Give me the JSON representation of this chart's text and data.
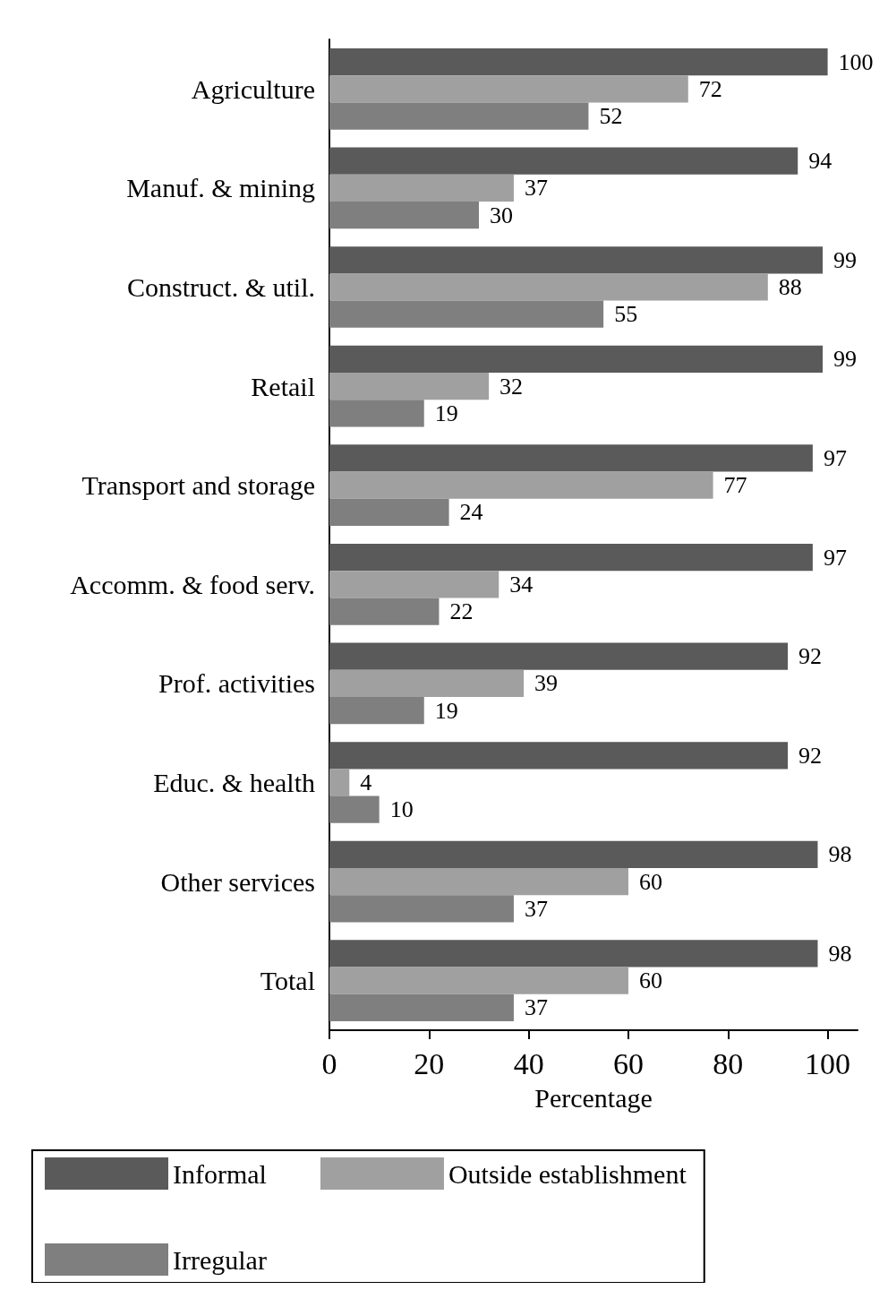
{
  "chart_data": {
    "type": "bar",
    "orientation": "horizontal",
    "xlabel": "Percentage",
    "categories": [
      "Agriculture",
      "Manuf. & mining",
      "Construct. & util.",
      "Retail",
      "Transport and storage",
      "Accomm. & food serv.",
      "Prof. activities",
      "Educ. & health",
      "Other services",
      "Total"
    ],
    "series": [
      {
        "name": "Informal",
        "color": "#5a5a5a",
        "values": [
          100,
          94,
          99,
          99,
          97,
          97,
          92,
          92,
          98,
          98
        ]
      },
      {
        "name": "Outside establishment",
        "color": "#a0a0a0",
        "values": [
          72,
          37,
          88,
          32,
          77,
          34,
          39,
          4,
          60,
          60
        ]
      },
      {
        "name": "Irregular",
        "color": "#7f7f7f",
        "values": [
          52,
          30,
          55,
          19,
          24,
          22,
          19,
          10,
          37,
          37
        ]
      }
    ],
    "xlim": [
      0,
      106
    ],
    "xticks": [
      0,
      20,
      40,
      60,
      80,
      100
    ],
    "grid": false,
    "legend": "bottom",
    "data_labels": true
  }
}
